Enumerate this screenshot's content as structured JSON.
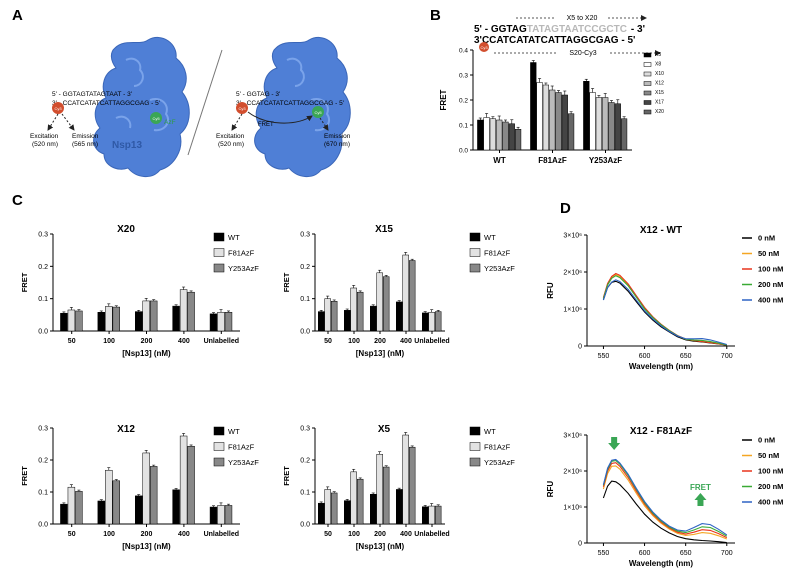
{
  "panels": {
    "a": {
      "letter": "A",
      "left_seq_top": "5' - GGTAGTATAGTAAT - 3'",
      "left_seq_bottom": "3' - CCATCATATCATTAGGCGAG - 5'",
      "right_seq_top": "5' - GGTAG - 3'",
      "right_seq_bottom": "3' - CCATCATATCATTAGGCGAG - 5'",
      "cy3": "Cy3",
      "cy5": "Cy5",
      "azf": "AzF",
      "excitation_left": "Excitation",
      "excitation_left_nm": "(520 nm)",
      "emission_left": "Emission",
      "emission_left_nm": "(565 nm)",
      "excitation_right": "Excitation",
      "excitation_right_nm": "(520 nm)",
      "fret": "FRET",
      "emission_right": "Emission",
      "emission_right_nm": "(670 nm)",
      "protein": "Nsp13"
    },
    "b": {
      "letter": "B",
      "range_label": "X5 to X20",
      "seq_top_prefix": "5' - GGTAG",
      "seq_top_grey": "TATAGTAATCCGCTC",
      "seq_top_suffix": "- 3'",
      "seq_bottom": "3'CCATCATATCATTAGGCGAG - 5'",
      "strand_label": "S20-Cy3"
    },
    "c": {
      "letter": "C"
    },
    "d": {
      "letter": "D"
    }
  },
  "chart_data": [
    {
      "id": "B",
      "type": "bar",
      "title": "",
      "xlabel": "",
      "ylabel": "FRET",
      "ylim": [
        0,
        0.4
      ],
      "yticks": [
        "0.0",
        "0.1",
        "0.2",
        "0.3",
        "0.4"
      ],
      "categories": [
        "WT",
        "F81AzF",
        "Y253AzF"
      ],
      "series": [
        {
          "name": "X5",
          "color": "#000000",
          "values": [
            0.12,
            0.35,
            0.275
          ]
        },
        {
          "name": "X8",
          "color": "#ffffff",
          "values": [
            0.13,
            0.27,
            0.23
          ]
        },
        {
          "name": "X10",
          "color": "#dddddd",
          "values": [
            0.125,
            0.26,
            0.21
          ]
        },
        {
          "name": "X12",
          "color": "#bbbbbb",
          "values": [
            0.12,
            0.24,
            0.21
          ]
        },
        {
          "name": "X15",
          "color": "#888888",
          "values": [
            0.112,
            0.23,
            0.19
          ]
        },
        {
          "name": "X17",
          "color": "#444444",
          "values": [
            0.105,
            0.22,
            0.185
          ]
        },
        {
          "name": "X20",
          "color": "#666666",
          "values": [
            0.083,
            0.145,
            0.125
          ]
        }
      ]
    },
    {
      "id": "C1",
      "type": "bar",
      "title": "X20",
      "xlabel": "[Nsp13] (nM)",
      "ylabel": "FRET",
      "ylim": [
        0,
        0.3
      ],
      "yticks": [
        "0.0",
        "0.1",
        "0.2",
        "0.3"
      ],
      "categories": [
        "50",
        "100",
        "200",
        "400",
        "Unlabelled"
      ],
      "series": [
        {
          "name": "WT",
          "color": "#000000",
          "values": [
            0.055,
            0.058,
            0.06,
            0.077,
            0.053
          ]
        },
        {
          "name": "F81AzF",
          "color": "#e2e2e2",
          "values": [
            0.065,
            0.076,
            0.093,
            0.128,
            0.058
          ]
        },
        {
          "name": "Y253AzF",
          "color": "#888888",
          "values": [
            0.062,
            0.074,
            0.093,
            0.12,
            0.058
          ]
        }
      ]
    },
    {
      "id": "C2",
      "type": "bar",
      "title": "X15",
      "xlabel": "[Nsp13] (nM)",
      "ylabel": "FRET",
      "ylim": [
        0,
        0.3
      ],
      "yticks": [
        "0.0",
        "0.1",
        "0.2",
        "0.3"
      ],
      "categories": [
        "50",
        "100",
        "200",
        "400",
        "Unlabelled"
      ],
      "series": [
        {
          "name": "WT",
          "color": "#000000",
          "values": [
            0.06,
            0.064,
            0.077,
            0.09,
            0.056
          ]
        },
        {
          "name": "F81AzF",
          "color": "#e2e2e2",
          "values": [
            0.1,
            0.133,
            0.18,
            0.235,
            0.058
          ]
        },
        {
          "name": "Y253AzF",
          "color": "#888888",
          "values": [
            0.092,
            0.12,
            0.168,
            0.218,
            0.06
          ]
        }
      ]
    },
    {
      "id": "C3",
      "type": "bar",
      "title": "X12",
      "xlabel": "[Nsp13] (nM)",
      "ylabel": "FRET",
      "ylim": [
        0,
        0.3
      ],
      "yticks": [
        "0.0",
        "0.1",
        "0.2",
        "0.3"
      ],
      "categories": [
        "50",
        "100",
        "200",
        "400",
        "Unlabelled"
      ],
      "series": [
        {
          "name": "WT",
          "color": "#000000",
          "values": [
            0.062,
            0.072,
            0.088,
            0.107,
            0.053
          ]
        },
        {
          "name": "F81AzF",
          "color": "#e2e2e2",
          "values": [
            0.115,
            0.168,
            0.222,
            0.275,
            0.058
          ]
        },
        {
          "name": "Y253AzF",
          "color": "#888888",
          "values": [
            0.102,
            0.135,
            0.18,
            0.243,
            0.058
          ]
        }
      ]
    },
    {
      "id": "C4",
      "type": "bar",
      "title": "X5",
      "xlabel": "[Nsp13] (nM)",
      "ylabel": "FRET",
      "ylim": [
        0,
        0.3
      ],
      "yticks": [
        "0.0",
        "0.1",
        "0.2",
        "0.3"
      ],
      "categories": [
        "50",
        "100",
        "200",
        "400",
        "Unlabelled"
      ],
      "series": [
        {
          "name": "WT",
          "color": "#000000",
          "values": [
            0.065,
            0.073,
            0.093,
            0.108,
            0.054
          ]
        },
        {
          "name": "F81AzF",
          "color": "#e2e2e2",
          "values": [
            0.108,
            0.163,
            0.218,
            0.278,
            0.056
          ]
        },
        {
          "name": "Y253AzF",
          "color": "#888888",
          "values": [
            0.097,
            0.14,
            0.178,
            0.24,
            0.056
          ]
        }
      ]
    },
    {
      "id": "D1",
      "type": "line",
      "title": "X12 - WT",
      "xlabel": "Wavelength (nm)",
      "ylabel": "RFU",
      "xlim": [
        530,
        710
      ],
      "ylim": [
        0,
        3000000
      ],
      "xticks": [
        "550",
        "600",
        "650",
        "700"
      ],
      "yticks": [
        "0",
        "1×10⁶",
        "2×10⁶",
        "3×10⁶"
      ],
      "x": [
        550,
        555,
        560,
        565,
        570,
        580,
        590,
        600,
        610,
        620,
        630,
        640,
        650,
        660,
        670,
        680,
        690,
        700
      ],
      "series": [
        {
          "name": "0 nM",
          "color": "#000000",
          "values": [
            1250000,
            1580000,
            1720000,
            1750000,
            1700000,
            1480000,
            1200000,
            920000,
            700000,
            520000,
            380000,
            250000,
            165000,
            130000,
            110000,
            85000,
            55000,
            25000
          ]
        },
        {
          "name": "50 nM",
          "color": "#f5a623",
          "values": [
            1300000,
            1670000,
            1850000,
            1930000,
            1880000,
            1650000,
            1340000,
            1020000,
            780000,
            580000,
            420000,
            280000,
            185000,
            145000,
            120000,
            92000,
            60000,
            28000
          ]
        },
        {
          "name": "100 nM",
          "color": "#e8341c",
          "values": [
            1310000,
            1690000,
            1880000,
            1960000,
            1910000,
            1680000,
            1360000,
            1040000,
            790000,
            590000,
            425000,
            285000,
            190000,
            148000,
            122000,
            94000,
            61000,
            28000
          ]
        },
        {
          "name": "200 nM",
          "color": "#3aaa35",
          "values": [
            1280000,
            1650000,
            1830000,
            1900000,
            1850000,
            1630000,
            1320000,
            1000000,
            770000,
            575000,
            415000,
            278000,
            185000,
            160000,
            150000,
            120000,
            75000,
            30000
          ]
        },
        {
          "name": "400 nM",
          "color": "#2e63c4",
          "values": [
            1240000,
            1580000,
            1730000,
            1790000,
            1740000,
            1530000,
            1240000,
            950000,
            730000,
            545000,
            395000,
            270000,
            195000,
            195000,
            200000,
            165000,
            105000,
            40000
          ]
        }
      ]
    },
    {
      "id": "D2",
      "type": "line",
      "title": "X12 - F81AzF",
      "xlabel": "Wavelength (nm)",
      "ylabel": "RFU",
      "xlim": [
        530,
        710
      ],
      "ylim": [
        0,
        3000000
      ],
      "xticks": [
        "550",
        "600",
        "650",
        "700"
      ],
      "yticks": [
        "0",
        "1×10⁶",
        "2×10⁶",
        "3×10⁶"
      ],
      "fret_label": "FRET",
      "x": [
        550,
        555,
        560,
        565,
        570,
        580,
        590,
        600,
        610,
        620,
        630,
        640,
        650,
        660,
        670,
        680,
        690,
        700
      ],
      "series": [
        {
          "name": "0 nM",
          "color": "#000000",
          "values": [
            1250000,
            1580000,
            1720000,
            1700000,
            1620000,
            1380000,
            1080000,
            800000,
            580000,
            410000,
            280000,
            180000,
            120000,
            90000,
            70000,
            55000,
            35000,
            15000
          ]
        },
        {
          "name": "50 nM",
          "color": "#f5a623",
          "values": [
            1500000,
            1930000,
            2130000,
            2140000,
            2050000,
            1750000,
            1380000,
            1030000,
            760000,
            550000,
            390000,
            270000,
            210000,
            240000,
            290000,
            270000,
            200000,
            110000
          ]
        },
        {
          "name": "100 nM",
          "color": "#e8341c",
          "values": [
            1560000,
            2000000,
            2210000,
            2230000,
            2130000,
            1820000,
            1440000,
            1080000,
            800000,
            580000,
            420000,
            300000,
            250000,
            300000,
            370000,
            350000,
            260000,
            150000
          ]
        },
        {
          "name": "200 nM",
          "color": "#3aaa35",
          "values": [
            1600000,
            2050000,
            2270000,
            2290000,
            2190000,
            1880000,
            1490000,
            1120000,
            830000,
            610000,
            445000,
            330000,
            290000,
            360000,
            450000,
            430000,
            320000,
            190000
          ]
        },
        {
          "name": "400 nM",
          "color": "#2e63c4",
          "values": [
            1620000,
            2080000,
            2300000,
            2320000,
            2220000,
            1910000,
            1520000,
            1150000,
            860000,
            640000,
            470000,
            360000,
            330000,
            430000,
            540000,
            510000,
            380000,
            225000
          ]
        }
      ]
    }
  ]
}
